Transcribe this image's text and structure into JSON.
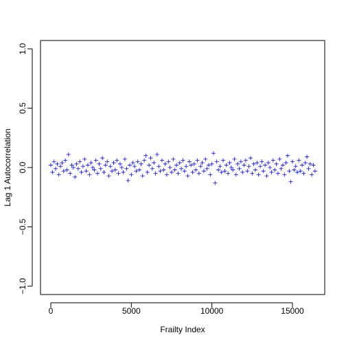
{
  "chart_data": {
    "type": "scatter",
    "x_label": "Frailty Index",
    "y_label": "Lag 1 Autocorrelation",
    "color": "#0000ff",
    "xlim": [
      -639,
      17003
    ],
    "ylim": [
      -1.07,
      1.07
    ],
    "xticks": [
      0,
      5000,
      10000,
      15000
    ],
    "yticks": [
      {
        "value": -1,
        "label": "−1.0"
      },
      {
        "value": -0.5,
        "label": "−0.5"
      },
      {
        "value": 0,
        "label": "0.0"
      },
      0.5,
      {
        "value": 1,
        "label": "1.0"
      }
    ],
    "x": [
      0,
      100,
      200,
      300,
      400,
      500,
      600,
      700,
      800,
      900,
      1000,
      1100,
      1200,
      1300,
      1400,
      1500,
      1600,
      1700,
      1800,
      1900,
      2000,
      2100,
      2200,
      2300,
      2400,
      2500,
      2600,
      2700,
      2800,
      2900,
      3000,
      3100,
      3200,
      3300,
      3400,
      3500,
      3600,
      3700,
      3800,
      3900,
      4000,
      4100,
      4200,
      4300,
      4400,
      4500,
      4600,
      4700,
      4800,
      4900,
      5000,
      5100,
      5200,
      5300,
      5400,
      5500,
      5600,
      5700,
      5800,
      5900,
      6000,
      6100,
      6200,
      6300,
      6400,
      6500,
      6600,
      6700,
      6800,
      6900,
      7000,
      7100,
      7200,
      7300,
      7400,
      7500,
      7600,
      7700,
      7800,
      7900,
      8000,
      8100,
      8200,
      8300,
      8400,
      8500,
      8600,
      8700,
      8800,
      8900,
      9000,
      9100,
      9200,
      9300,
      9400,
      9500,
      9600,
      9700,
      9800,
      9900,
      10000,
      10100,
      10200,
      10300,
      10400,
      10500,
      10600,
      10700,
      10800,
      10900,
      11000,
      11100,
      11200,
      11300,
      11400,
      11500,
      11600,
      11700,
      11800,
      11900,
      12000,
      12100,
      12200,
      12300,
      12400,
      12500,
      12600,
      12700,
      12800,
      12900,
      13000,
      13100,
      13200,
      13300,
      13400,
      13500,
      13600,
      13700,
      13800,
      13900,
      14000,
      14100,
      14200,
      14300,
      14400,
      14500,
      14600,
      14700,
      14800,
      14900,
      15000,
      15100,
      15200,
      15300,
      15400,
      15500,
      15600,
      15700,
      15800,
      15900,
      16000,
      16100,
      16200,
      16300,
      16400
    ],
    "values": [
      0.02,
      -0.04,
      0.05,
      -0.01,
      0.03,
      -0.06,
      0.01,
      0.04,
      -0.03,
      0.06,
      -0.02,
      0.11,
      -0.05,
      0.02,
      0.0,
      -0.08,
      0.03,
      -0.01,
      0.05,
      -0.04,
      0.01,
      0.07,
      -0.03,
      0.02,
      -0.06,
      0.04,
      0.0,
      -0.02,
      0.06,
      -0.05,
      0.03,
      -0.01,
      0.08,
      -0.04,
      0.02,
      0.05,
      -0.07,
      0.01,
      -0.03,
      0.04,
      -0.02,
      0.06,
      -0.05,
      0.03,
      0.0,
      -0.04,
      0.07,
      -0.01,
      -0.11,
      0.02,
      -0.06,
      0.04,
      0.01,
      -0.03,
      0.05,
      -0.02,
      0.03,
      -0.07,
      0.06,
      0.1,
      -0.04,
      0.02,
      0.08,
      -0.01,
      0.04,
      -0.05,
      0.11,
      0.01,
      -0.03,
      0.06,
      -0.02,
      0.03,
      -0.06,
      0.05,
      0.0,
      -0.04,
      0.07,
      -0.02,
      0.02,
      -0.05,
      0.04,
      -0.01,
      0.06,
      -0.03,
      0.01,
      -0.07,
      0.05,
      0.02,
      -0.04,
      0.03,
      -0.02,
      0.06,
      -0.05,
      0.01,
      0.04,
      -0.03,
      0.07,
      -0.01,
      0.02,
      -0.06,
      0.03,
      0.12,
      -0.13,
      0.05,
      -0.02,
      0.01,
      -0.04,
      0.06,
      -0.03,
      0.02,
      -0.05,
      0.04,
      0.0,
      -0.02,
      0.07,
      -0.06,
      0.03,
      -0.01,
      0.05,
      -0.04,
      0.02,
      0.06,
      -0.03,
      0.01,
      0.08,
      -0.05,
      0.03,
      -0.02,
      0.04,
      -0.06,
      0.01,
      0.05,
      -0.03,
      0.02,
      -0.07,
      0.04,
      0.0,
      -0.04,
      0.06,
      -0.02,
      0.03,
      -0.05,
      0.07,
      -0.01,
      0.02,
      -0.06,
      0.04,
      0.1,
      -0.03,
      -0.12,
      0.05,
      -0.02,
      0.01,
      -0.04,
      0.06,
      -0.03,
      0.02,
      -0.05,
      0.04,
      0.09,
      -0.01,
      0.03,
      -0.06,
      0.02,
      -0.03
    ]
  }
}
